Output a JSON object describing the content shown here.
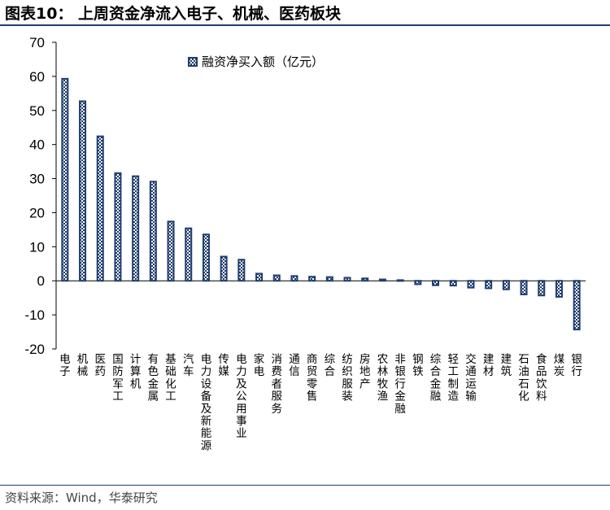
{
  "title": "图表10： 上周资金净流入电子、机械、医药板块",
  "source": "资料来源：Wind，华泰研究",
  "colors": {
    "bar": "#1f3d6e",
    "bar_fill_light": "#b8c9e6",
    "rule": "#1f3d6e"
  },
  "chart_data": {
    "type": "bar",
    "title": "",
    "xlabel": "",
    "ylabel": "",
    "ylim": [
      -20,
      70
    ],
    "yticks": [
      -20,
      -10,
      0,
      10,
      20,
      30,
      40,
      50,
      60,
      70
    ],
    "grid": false,
    "legend_position": "top-center",
    "categories": [
      "电子",
      "机械",
      "医药",
      "国防军工",
      "计算机",
      "有色金属",
      "基础化工",
      "汽车",
      "电力设备及新能源",
      "传媒",
      "电力及公用事业",
      "家电",
      "消费者服务",
      "通信",
      "商贸零售",
      "综合",
      "纺织服装",
      "房地产",
      "农林牧渔",
      "非银行金融",
      "钢铁",
      "综合金融",
      "轻工制造",
      "交通运输",
      "建材",
      "建筑",
      "石油石化",
      "食品饮料",
      "煤炭",
      "银行"
    ],
    "series": [
      {
        "name": "融资净买入额（亿元）",
        "values": [
          59.3,
          52.7,
          42.4,
          31.6,
          30.7,
          29.1,
          17.4,
          15.4,
          13.6,
          7.1,
          6.2,
          2.1,
          1.6,
          1.4,
          1.2,
          1.1,
          0.9,
          0.7,
          0.4,
          0.2,
          -1.0,
          -1.3,
          -1.4,
          -2.0,
          -2.2,
          -2.5,
          -4.0,
          -4.3,
          -4.7,
          -14.3
        ]
      }
    ]
  }
}
